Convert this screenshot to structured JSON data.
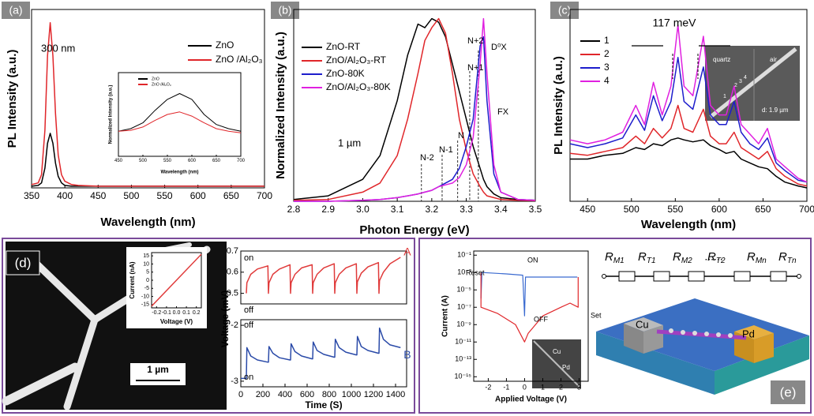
{
  "figure": {
    "panel_labels": [
      "(a)",
      "(b)",
      "(c)",
      "(d)",
      "(e)"
    ],
    "c_inset": {
      "labels": [
        "quartz",
        "air",
        "d: 1.9 µm"
      ],
      "points": [
        "1",
        "2",
        "3",
        "4"
      ]
    },
    "d_image": {
      "scale_bar": "1 µm"
    },
    "e_inset": {
      "labels": [
        "Cu",
        "Pd"
      ]
    },
    "schematic": {
      "resistors": [
        {
          "symbol": "R",
          "sub": "M1"
        },
        {
          "symbol": "R",
          "sub": "T1"
        },
        {
          "symbol": "R",
          "sub": "M2"
        },
        {
          "symbol": "R",
          "sub": "T2"
        },
        {
          "symbol": "R",
          "sub": "Mn"
        },
        {
          "symbol": "R",
          "sub": "Tn"
        }
      ],
      "ellipsis": "......",
      "electrodes": [
        "Cu",
        "Pd"
      ]
    }
  },
  "chart_data": [
    {
      "type": "line",
      "xlabel": "Wavelength (nm)",
      "ylabel": "PL Intensity (a.u.)",
      "annotations": [
        "300 nm"
      ],
      "x": [
        350,
        360,
        365,
        370,
        374,
        378,
        382,
        386,
        390,
        395,
        400,
        410,
        420,
        450,
        500,
        600,
        700
      ],
      "series": [
        {
          "name": "ZnO",
          "color": "#000000",
          "values": [
            0.01,
            0.015,
            0.03,
            0.12,
            0.27,
            0.33,
            0.27,
            0.15,
            0.07,
            0.03,
            0.015,
            0.01,
            0.01,
            0.01,
            0.01,
            0.01,
            0.01
          ]
        },
        {
          "name": "ZnO /Al₂O₃",
          "color": "#e0262a",
          "values": [
            0.02,
            0.03,
            0.08,
            0.35,
            0.8,
            1.0,
            0.8,
            0.45,
            0.2,
            0.08,
            0.04,
            0.02,
            0.015,
            0.01,
            0.01,
            0.01,
            0.01
          ]
        }
      ],
      "xlim": [
        350,
        700
      ],
      "xticks": [
        350,
        400,
        450,
        500,
        550,
        600,
        650,
        700
      ],
      "ylim": [
        0,
        1.08
      ]
    },
    {
      "type": "line",
      "xlabel": "Wavelength (nm)",
      "ylabel": "Normalized Intensity (a.u.)",
      "x": [
        450,
        475,
        500,
        525,
        550,
        575,
        600,
        625,
        650,
        675,
        700
      ],
      "series": [
        {
          "name": "ZnO",
          "color": "#000000",
          "values": [
            0.3,
            0.33,
            0.4,
            0.55,
            0.68,
            0.75,
            0.68,
            0.5,
            0.38,
            0.33,
            0.3
          ]
        },
        {
          "name": "ZnO /Al₂O₃",
          "color": "#e0262a",
          "values": [
            0.3,
            0.31,
            0.35,
            0.43,
            0.5,
            0.53,
            0.48,
            0.4,
            0.33,
            0.3,
            0.28
          ]
        }
      ],
      "xlim": [
        450,
        700
      ],
      "xticks": [
        450,
        500,
        550,
        600,
        650,
        700
      ],
      "ylim": [
        0,
        1
      ]
    },
    {
      "type": "line",
      "xlabel": "Photon Energy (eV)",
      "ylabel": "Normalized Intensity (a.u.)",
      "annotations": [
        "1 µm",
        "N+2",
        "D⁰X",
        "N+1",
        "FX",
        "N",
        "N-1",
        "N-2"
      ],
      "vlines": [
        3.17,
        3.23,
        3.275,
        3.31,
        3.335
      ],
      "x": [
        2.8,
        2.9,
        3.0,
        3.05,
        3.1,
        3.13,
        3.16,
        3.18,
        3.2,
        3.22,
        3.24,
        3.26,
        3.28,
        3.3,
        3.32,
        3.34,
        3.35,
        3.36,
        3.38,
        3.4,
        3.45,
        3.5
      ],
      "series": [
        {
          "name": "ZnO-RT",
          "color": "#000000",
          "values": [
            0.01,
            0.03,
            0.12,
            0.25,
            0.55,
            0.8,
            0.97,
            0.95,
            1.0,
            0.98,
            0.9,
            0.75,
            0.6,
            0.45,
            0.3,
            0.18,
            0.12,
            0.08,
            0.04,
            0.02,
            0.01,
            0.005
          ]
        },
        {
          "name": "ZnO/Al₂O₃-RT",
          "color": "#e0262a",
          "values": [
            0.005,
            0.01,
            0.05,
            0.1,
            0.25,
            0.45,
            0.7,
            0.88,
            0.95,
            1.0,
            0.92,
            0.7,
            0.45,
            0.28,
            0.15,
            0.08,
            0.05,
            0.03,
            0.02,
            0.01,
            0.005,
            0.003
          ]
        },
        {
          "name": "ZnO-80K",
          "color": "#1d1dcc",
          "values": [
            0,
            0,
            0.005,
            0.01,
            0.02,
            0.03,
            0.04,
            0.05,
            0.06,
            0.08,
            0.1,
            0.12,
            0.18,
            0.3,
            0.45,
            0.85,
            0.9,
            0.55,
            0.15,
            0.05,
            0.01,
            0.005
          ]
        },
        {
          "name": "ZnO/Al₂O₃-80K",
          "color": "#e020e0",
          "values": [
            0,
            0,
            0.005,
            0.01,
            0.02,
            0.03,
            0.04,
            0.05,
            0.06,
            0.08,
            0.09,
            0.1,
            0.13,
            0.2,
            0.35,
            0.75,
            1.0,
            0.7,
            0.2,
            0.05,
            0.01,
            0.005
          ]
        }
      ],
      "xlim": [
        2.8,
        3.5
      ],
      "xticks": [
        2.8,
        2.9,
        {
          "value": 3,
          "label": "3.0"
        },
        3.1,
        3.2,
        3.3,
        3.4,
        3.5
      ],
      "ylim": [
        0,
        1.05
      ]
    },
    {
      "type": "line",
      "xlabel": "Wavelength (nm)",
      "ylabel": "PL Intensity (a.u.)",
      "annotations": [
        "117 meV"
      ],
      "x": [
        430,
        450,
        470,
        490,
        505,
        515,
        525,
        535,
        545,
        553,
        560,
        570,
        582,
        590,
        600,
        608,
        617,
        625,
        635,
        645,
        655,
        665,
        675,
        690,
        700
      ],
      "series": [
        {
          "name": "1",
          "color": "#000000",
          "values": [
            0.22,
            0.22,
            0.24,
            0.25,
            0.28,
            0.27,
            0.3,
            0.29,
            0.32,
            0.33,
            0.32,
            0.31,
            0.32,
            0.29,
            0.27,
            0.25,
            0.26,
            0.22,
            0.2,
            0.18,
            0.17,
            0.13,
            0.1,
            0.08,
            0.07
          ]
        },
        {
          "name": "2",
          "color": "#e0262a",
          "values": [
            0.25,
            0.24,
            0.26,
            0.28,
            0.34,
            0.3,
            0.38,
            0.33,
            0.38,
            0.5,
            0.38,
            0.36,
            0.48,
            0.34,
            0.3,
            0.3,
            0.36,
            0.28,
            0.25,
            0.22,
            0.26,
            0.17,
            0.13,
            0.09,
            0.08
          ]
        },
        {
          "name": "3",
          "color": "#1d1dcc",
          "values": [
            0.3,
            0.28,
            0.3,
            0.33,
            0.45,
            0.37,
            0.55,
            0.42,
            0.52,
            0.75,
            0.52,
            0.48,
            0.7,
            0.45,
            0.4,
            0.4,
            0.52,
            0.36,
            0.3,
            0.27,
            0.33,
            0.2,
            0.16,
            0.11,
            0.1
          ]
        },
        {
          "name": "4",
          "color": "#e020e0",
          "values": [
            0.32,
            0.3,
            0.32,
            0.36,
            0.5,
            0.4,
            0.62,
            0.45,
            0.6,
            0.92,
            0.6,
            0.55,
            0.86,
            0.5,
            0.45,
            0.45,
            0.6,
            0.4,
            0.35,
            0.3,
            0.38,
            0.22,
            0.18,
            0.12,
            0.1
          ]
        }
      ],
      "xlim": [
        430,
        700
      ],
      "xticks": [
        450,
        500,
        550,
        600,
        650,
        700
      ],
      "ylim": [
        0,
        1
      ]
    },
    {
      "type": "line",
      "xlabel": "Voltage (V)",
      "ylabel": "Current (nA)",
      "x": [
        -0.25,
        0.25
      ],
      "series": [
        {
          "color": "#e03a3a",
          "values": [
            -16,
            16
          ]
        }
      ],
      "xlim": [
        -0.25,
        0.25
      ],
      "xticks": [
        -0.2,
        -0.1,
        {
          "value": 0,
          "label": "0.0"
        },
        0.1,
        0.2
      ],
      "ylim": [
        -17,
        17
      ],
      "yticks": [
        -15,
        -10,
        -5,
        0,
        5,
        10,
        15
      ]
    },
    {
      "type": "line",
      "xlabel": "Time (S)",
      "ylabel": "Voltage (mV)",
      "annotations": [
        "on",
        "off",
        "off",
        "on"
      ],
      "x": [
        0,
        50,
        55,
        90,
        150,
        245,
        250,
        255,
        290,
        350,
        445,
        450,
        455,
        490,
        550,
        645,
        650,
        655,
        690,
        750,
        845,
        850,
        855,
        890,
        950,
        1045,
        1050,
        1055,
        1090,
        1150,
        1245,
        1250,
        1255,
        1290,
        1350,
        1445
      ],
      "series": [
        {
          "name": "A",
          "color": "#e03a3a",
          "values": [
            null,
            0.5,
            0.55,
            0.59,
            0.615,
            0.63,
            0.5,
            0.55,
            0.59,
            0.615,
            0.635,
            0.5,
            0.55,
            0.59,
            0.62,
            0.635,
            0.5,
            0.55,
            0.59,
            0.62,
            0.64,
            0.5,
            0.55,
            0.59,
            0.62,
            0.64,
            0.5,
            0.555,
            0.595,
            0.625,
            0.645,
            0.5,
            0.56,
            0.6,
            0.64,
            0.67
          ]
        },
        {
          "name": "B",
          "color": "#2a4aa8",
          "axis": "y2",
          "values": [
            -2.95,
            -2.95,
            -2.4,
            -2.55,
            -2.62,
            -2.66,
            -2.66,
            -2.38,
            -2.5,
            -2.58,
            -2.62,
            -2.62,
            -2.33,
            -2.47,
            -2.55,
            -2.6,
            -2.6,
            -2.3,
            -2.45,
            -2.52,
            -2.57,
            -2.57,
            -2.25,
            -2.4,
            -2.48,
            -2.53,
            -2.53,
            -2.2,
            -2.38,
            -2.45,
            -2.5,
            -2.5,
            -2.05,
            -2.25,
            -2.35,
            -2.4
          ]
        }
      ],
      "xlim": [
        0,
        1500
      ],
      "xticks": [
        0,
        200,
        400,
        600,
        800,
        1000,
        1200,
        1400
      ],
      "ylim": [
        0.45,
        0.7
      ],
      "yticks": [
        0.5,
        0.6,
        0.7
      ],
      "y2lim": [
        -3.1,
        -1.9
      ],
      "y2ticks": [
        -3,
        -2
      ]
    },
    {
      "type": "line",
      "xlabel": "Applied Voltage (V)",
      "ylabel": "Current (A)",
      "log_y": true,
      "annotations": [
        "ON",
        "OFF",
        "Reset",
        "Set"
      ],
      "series": [
        {
          "color": "#3a6ad0",
          "x": [
            -2.4,
            -2.35,
            -1,
            -0.1,
            0,
            0.05,
            1.5,
            2.9
          ],
          "values": [
            1e-06,
            0.001,
            0.0007,
            0.0005,
            1e-08,
            0.0003,
            0.0003,
            0.0003
          ]
        },
        {
          "color": "#e0262a",
          "x": [
            2.95,
            2.95,
            2.5,
            2,
            1,
            0.2,
            0,
            -0.5,
            -1.5,
            -2.4,
            -2.4
          ],
          "values": [
            0.0003,
            1e-07,
            3e-07,
            1e-07,
            1e-08,
            1e-10,
            1e-11,
            1e-09,
            2e-08,
            1e-07,
            0.001
          ]
        }
      ],
      "xlim": [
        -2.8,
        3.5
      ],
      "xticks": [
        -2,
        -1,
        0,
        1,
        2,
        3
      ],
      "ylim": [
        3e-16,
        0.3
      ],
      "yticks": [
        {
          "value": 0.1,
          "label": "10⁻¹"
        },
        {
          "value": 0.001,
          "label": "10⁻³"
        },
        {
          "value": 1e-05,
          "label": "10⁻⁵"
        },
        {
          "value": 1e-07,
          "label": "10⁻⁷"
        },
        {
          "value": 1e-09,
          "label": "10⁻⁹"
        },
        {
          "value": 1e-11,
          "label": "10⁻¹¹"
        },
        {
          "value": 1e-13,
          "label": "10⁻¹³"
        },
        {
          "value": 1e-15,
          "label": "10⁻¹⁵"
        }
      ]
    }
  ]
}
